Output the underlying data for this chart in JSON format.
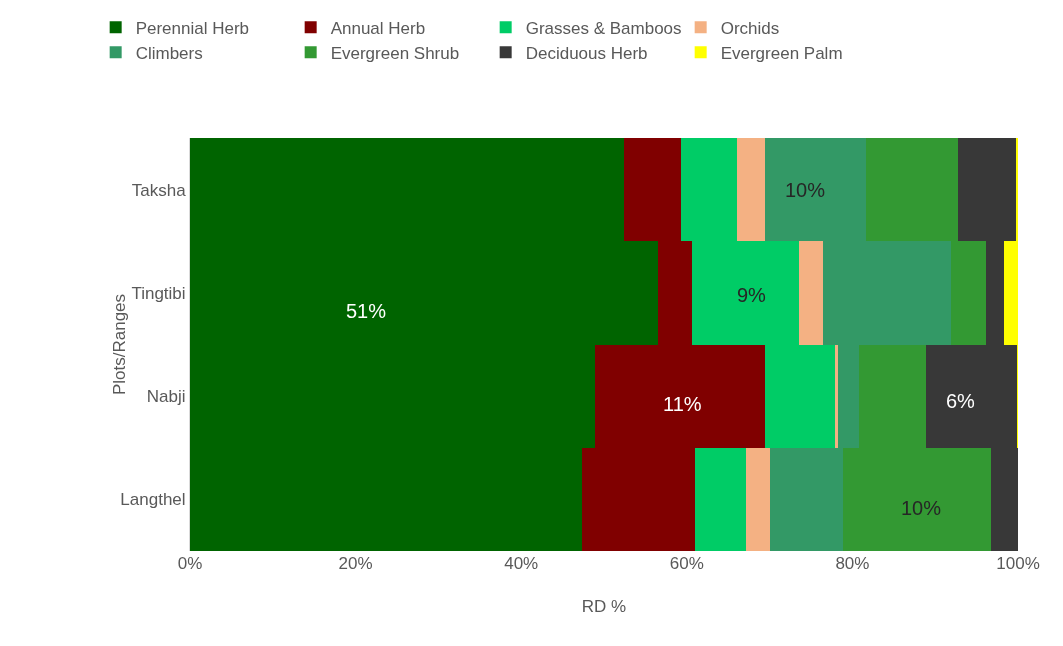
{
  "chart_data": {
    "type": "bar",
    "orientation": "horizontal",
    "stacked": true,
    "xlabel": "RD %",
    "ylabel": "Plots/Ranges",
    "categories": [
      "Taksha",
      "Tingtibi",
      "Nabji",
      "Langthel"
    ],
    "series": [
      {
        "name": "Perennial Herb",
        "color": "#006400",
        "values": [
          52.4,
          56.5,
          48.9,
          47.3
        ]
      },
      {
        "name": "Annual Herb",
        "color": "#800000",
        "values": [
          6.9,
          4.1,
          20.5,
          13.7
        ]
      },
      {
        "name": "Grasses & Bamboos",
        "color": "#00cc66",
        "values": [
          6.8,
          12.9,
          8.5,
          6.1
        ]
      },
      {
        "name": "Orchids",
        "color": "#f4b183",
        "values": [
          3.4,
          2.9,
          0.3,
          3.0
        ]
      },
      {
        "name": "Climbers",
        "color": "#339966",
        "values": [
          12.1,
          15.5,
          2.6,
          8.8
        ]
      },
      {
        "name": "Evergreen Shrub",
        "color": "#339933",
        "values": [
          11.2,
          4.2,
          8.1,
          17.8
        ]
      },
      {
        "name": "Deciduous Herb",
        "color": "#383838",
        "values": [
          7.0,
          2.2,
          11.0,
          3.3
        ]
      },
      {
        "name": "Evergreen Palm",
        "color": "#ffff00",
        "values": [
          0.4,
          1.7,
          0.2,
          0
        ]
      }
    ],
    "xlim": [
      0,
      100
    ],
    "xticks": [
      {
        "value": 0,
        "label": "0%"
      },
      {
        "value": 20,
        "label": "20%"
      },
      {
        "value": 40,
        "label": "40%"
      },
      {
        "value": 60,
        "label": "60%"
      },
      {
        "value": 80,
        "label": "80%"
      },
      {
        "value": 100,
        "label": "100%"
      }
    ],
    "annotations": [
      "10%",
      "51%",
      "9%",
      "11%",
      "6%",
      "10%"
    ],
    "legend": "top"
  }
}
